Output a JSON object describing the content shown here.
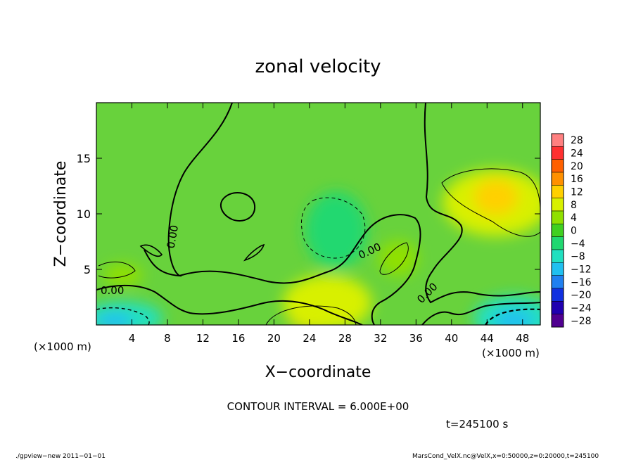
{
  "chart_data": {
    "type": "heatmap",
    "title": "zonal velocity",
    "xlabel": "X−coordinate",
    "ylabel": "Z−coordinate",
    "x_unit_label": "(×1000 m)",
    "y_unit_label": "(×1000 m)",
    "xlim": [
      0,
      50
    ],
    "ylim": [
      0,
      20
    ],
    "x_ticks": [
      4,
      8,
      12,
      16,
      20,
      24,
      28,
      32,
      36,
      40,
      44,
      48
    ],
    "y_ticks": [
      5,
      10,
      15
    ],
    "contour_interval_label": "CONTOUR INTERVAL = 6.000E+00",
    "time_label": "t=245100 s",
    "contour_labels": [
      "0.00",
      "0.00",
      "0.00",
      "0.00"
    ],
    "colorbar": {
      "levels": [
        28,
        24,
        20,
        16,
        12,
        8,
        4,
        0,
        -4,
        -8,
        -12,
        -16,
        -20,
        -24,
        -28
      ],
      "level_labels": [
        "28",
        "24",
        "20",
        "16",
        "12",
        "8",
        "4",
        "0",
        "−4",
        "−8",
        "−12",
        "−16",
        "−20",
        "−24",
        "−28"
      ],
      "colors": [
        "#ff8080",
        "#ff3030",
        "#ff6000",
        "#ff9000",
        "#ffd000",
        "#d8f000",
        "#90e000",
        "#40d020",
        "#20d870",
        "#20e0c0",
        "#20c0f0",
        "#2080f0",
        "#1030e0",
        "#2000b0",
        "#500090"
      ]
    },
    "field_blobs": [
      {
        "x": 25,
        "y": 1.0,
        "rx": 3.5,
        "ry": 1.6,
        "value": 12
      },
      {
        "x": 26,
        "y": 2.0,
        "rx": 5,
        "ry": 2.5,
        "value": 6
      },
      {
        "x": 45,
        "y": 11,
        "rx": 6,
        "ry": 3,
        "value": 8
      },
      {
        "x": 45,
        "y": 11.5,
        "rx": 2.5,
        "ry": 1.6,
        "value": 10
      },
      {
        "x": 27,
        "y": 8.5,
        "rx": 3.5,
        "ry": 3.5,
        "value": -6
      },
      {
        "x": 47,
        "y": 0.6,
        "rx": 4.5,
        "ry": 2.0,
        "value": -10
      },
      {
        "x": 47,
        "y": 0.4,
        "rx": 2.2,
        "ry": 1.0,
        "value": -14
      },
      {
        "x": 3,
        "y": 0.6,
        "rx": 4.5,
        "ry": 1.5,
        "value": -8
      },
      {
        "x": 2,
        "y": 0.3,
        "rx": 2.0,
        "ry": 0.8,
        "value": -13
      },
      {
        "x": 34,
        "y": 6,
        "rx": 2.2,
        "ry": 1.6,
        "value": 5
      },
      {
        "x": 3,
        "y": 4.5,
        "rx": 2.2,
        "ry": 1.0,
        "value": 4
      }
    ]
  },
  "footer": {
    "left": "./gpview−new   2011−01−01",
    "right": "MarsCond_VelX.nc@VelX,x=0:50000,z=0:20000,t=245100"
  }
}
